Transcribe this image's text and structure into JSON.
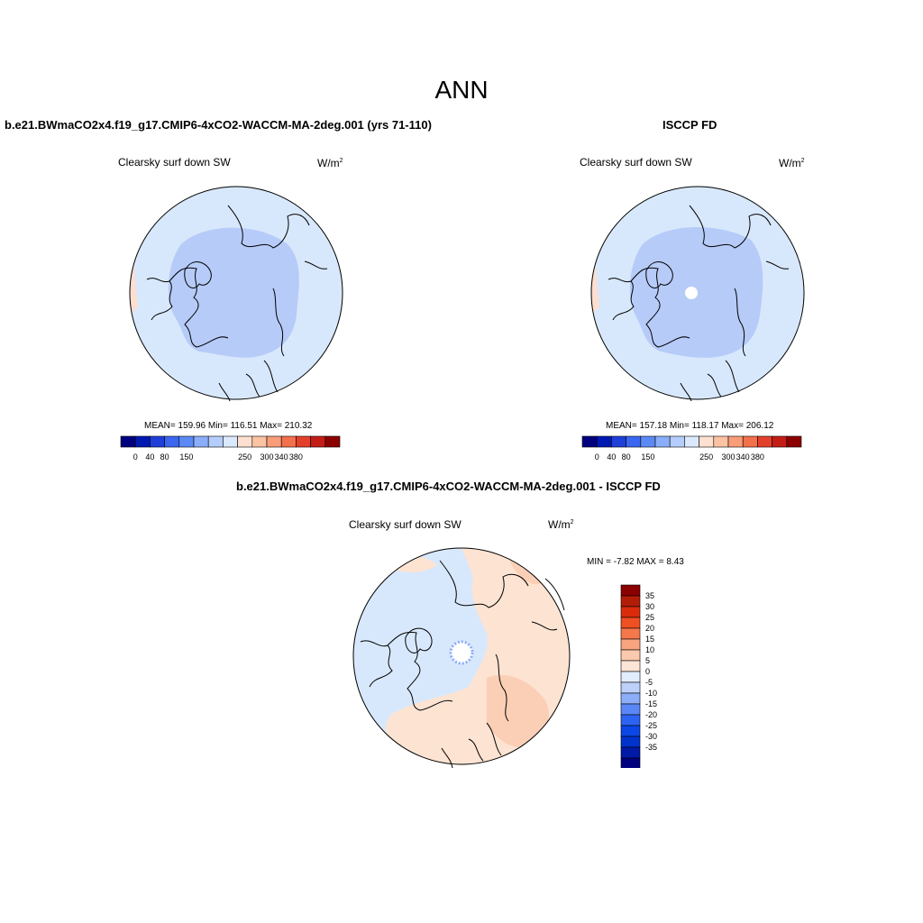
{
  "page": {
    "title": "ANN"
  },
  "colors": {
    "abs_scale": [
      "#00007f",
      "#0019b3",
      "#1f3fd9",
      "#3a66f0",
      "#5c8af5",
      "#8aaefa",
      "#b4cdfc",
      "#dbe9fd",
      "#fde0cf",
      "#fcc2a4",
      "#f99d78",
      "#f2704c",
      "#e3402b",
      "#c41d15",
      "#8b0000"
    ],
    "diff_scale": [
      "#00007f",
      "#001aa6",
      "#0033cc",
      "#0b46e6",
      "#2d63f2",
      "#5a87f5",
      "#8cadf7",
      "#bcd0f9",
      "#e1ecfc",
      "#fde5d5",
      "#fbc9ad",
      "#f8a47f",
      "#f5784d",
      "#ef4f22",
      "#da2b0b",
      "#b21d08",
      "#8b0000"
    ],
    "ocean_base": "#d8e8fc",
    "pole_low": "#b7cefa",
    "warm": "#fddecf",
    "map_border": "#000000"
  },
  "panels": {
    "model": {
      "title": "b.e21.BWmaCO2x4.f19_g17.CMIP6-4xCO2-WACCM-MA-2deg.001 (yrs 71-110)",
      "variable": "Clearsky surf down SW",
      "units": "W/m",
      "units_sup": "2",
      "stats": "MEAN= 159.96  Min= 116.51  Max= 210.32",
      "colorbar_labels": [
        "0",
        "40",
        "80",
        "150",
        "250",
        "300",
        "340",
        "380"
      ]
    },
    "obs": {
      "title": "ISCCP FD",
      "variable": "Clearsky surf down SW",
      "units": "W/m",
      "units_sup": "2",
      "stats": "MEAN= 157.18  Min= 118.17  Max= 206.12",
      "colorbar_labels": [
        "0",
        "40",
        "80",
        "150",
        "250",
        "300",
        "340",
        "380"
      ]
    },
    "diff": {
      "title": "b.e21.BWmaCO2x4.f19_g17.CMIP6-4xCO2-WACCM-MA-2deg.001 - ISCCP FD",
      "variable": "Clearsky surf down SW",
      "units": "W/m",
      "units_sup": "2",
      "minmax": "MIN =  -7.82 MAX =   8.43",
      "colorbar_labels": [
        "35",
        "30",
        "25",
        "20",
        "15",
        "10",
        "5",
        "0",
        "-5",
        "-10",
        "-15",
        "-20",
        "-25",
        "-30",
        "-35"
      ]
    }
  }
}
